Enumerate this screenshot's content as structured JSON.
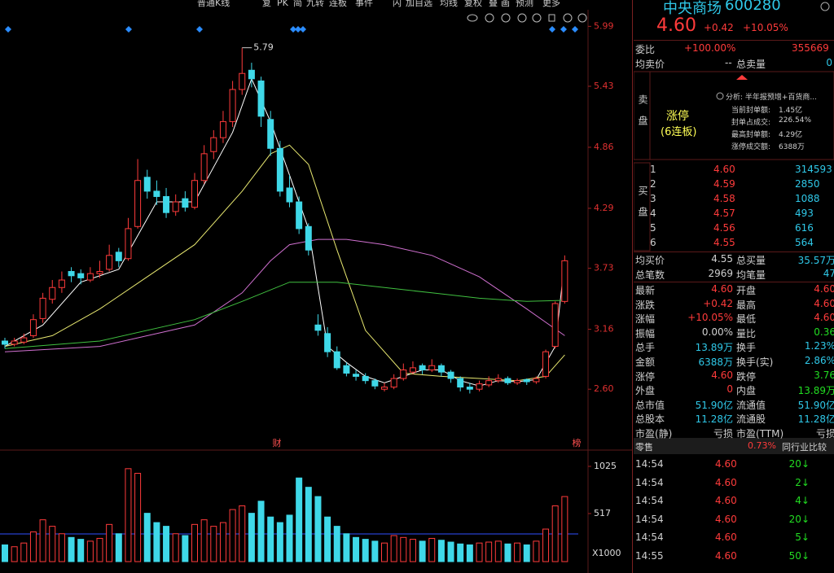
{
  "toolbar": [
    "普通K线",
    "复",
    "PK",
    "简",
    "九转",
    "连板",
    "事件",
    "闪",
    "加自选",
    "均线",
    "复权",
    "叠",
    "画",
    "预测",
    "更多"
  ],
  "kline": {
    "ylim": [
      2.13,
      6.16
    ],
    "yticks": [
      5.99,
      5.43,
      4.86,
      4.29,
      3.73,
      3.16,
      {
        "value": 2.6,
        "label": "2.60"
      }
    ],
    "high_label": "5.79",
    "markers": [
      "财",
      "榜"
    ],
    "up_color": "#ff3b3b",
    "down_color": "#3fd8e8",
    "candles": [
      [
        3.05,
        3.08,
        2.98,
        3.02
      ],
      [
        3.02,
        3.08,
        3.0,
        3.05
      ],
      [
        3.04,
        3.12,
        3.02,
        3.08
      ],
      [
        3.1,
        3.3,
        3.08,
        3.25
      ],
      [
        3.26,
        3.5,
        3.22,
        3.45
      ],
      [
        3.44,
        3.62,
        3.4,
        3.55
      ],
      [
        3.55,
        3.7,
        3.5,
        3.62
      ],
      [
        3.7,
        3.74,
        3.6,
        3.66
      ],
      [
        3.68,
        3.72,
        3.58,
        3.64
      ],
      [
        3.62,
        3.74,
        3.6,
        3.68
      ],
      [
        3.68,
        3.8,
        3.64,
        3.7
      ],
      [
        3.72,
        3.95,
        3.7,
        3.85
      ],
      [
        3.88,
        3.92,
        3.74,
        3.8
      ],
      [
        3.82,
        4.2,
        3.8,
        4.1
      ],
      [
        4.12,
        4.75,
        4.1,
        4.55
      ],
      [
        4.58,
        4.65,
        4.38,
        4.45
      ],
      [
        4.45,
        4.55,
        4.32,
        4.4
      ],
      [
        4.4,
        4.48,
        4.2,
        4.25
      ],
      [
        4.26,
        4.42,
        4.22,
        4.35
      ],
      [
        4.38,
        4.45,
        4.26,
        4.3
      ],
      [
        4.3,
        4.62,
        4.28,
        4.55
      ],
      [
        4.55,
        4.88,
        4.52,
        4.8
      ],
      [
        4.82,
        5.02,
        4.75,
        4.95
      ],
      [
        4.95,
        5.2,
        4.9,
        5.1
      ],
      [
        5.1,
        5.48,
        5.05,
        5.4
      ],
      [
        5.4,
        5.79,
        5.35,
        5.55
      ],
      [
        5.58,
        5.65,
        5.42,
        5.5
      ],
      [
        5.48,
        5.52,
        5.05,
        5.15
      ],
      [
        5.12,
        5.2,
        4.78,
        4.85
      ],
      [
        4.85,
        4.92,
        4.4,
        4.45
      ],
      [
        4.48,
        4.6,
        4.3,
        4.35
      ],
      [
        4.35,
        4.4,
        4.05,
        4.1
      ],
      [
        4.12,
        4.15,
        3.85,
        3.9
      ],
      [
        3.2,
        3.3,
        3.1,
        3.15
      ],
      [
        3.12,
        3.18,
        2.9,
        2.95
      ],
      [
        2.95,
        3.0,
        2.78,
        2.8
      ],
      [
        2.82,
        2.85,
        2.72,
        2.75
      ],
      [
        2.74,
        2.78,
        2.68,
        2.72
      ],
      [
        2.72,
        2.75,
        2.65,
        2.68
      ],
      [
        2.68,
        2.7,
        2.6,
        2.63
      ],
      [
        2.6,
        2.66,
        2.58,
        2.62
      ],
      [
        2.62,
        2.74,
        2.6,
        2.7
      ],
      [
        2.7,
        2.84,
        2.68,
        2.78
      ],
      [
        2.76,
        2.86,
        2.74,
        2.8
      ],
      [
        2.82,
        2.84,
        2.74,
        2.78
      ],
      [
        2.78,
        2.88,
        2.76,
        2.82
      ],
      [
        2.82,
        2.84,
        2.72,
        2.76
      ],
      [
        2.76,
        2.78,
        2.66,
        2.7
      ],
      [
        2.7,
        2.72,
        2.58,
        2.62
      ],
      [
        2.62,
        2.66,
        2.56,
        2.6
      ],
      [
        2.6,
        2.68,
        2.58,
        2.65
      ],
      [
        2.64,
        2.72,
        2.62,
        2.68
      ],
      [
        2.68,
        2.74,
        2.66,
        2.7
      ],
      [
        2.7,
        2.72,
        2.64,
        2.66
      ],
      [
        2.66,
        2.7,
        2.64,
        2.68
      ],
      [
        2.69,
        2.7,
        2.64,
        2.67
      ],
      [
        2.67,
        2.72,
        2.65,
        2.7
      ],
      [
        2.72,
        2.97,
        2.7,
        2.95
      ],
      [
        3.0,
        3.42,
        2.98,
        3.4
      ],
      [
        3.42,
        3.85,
        3.4,
        3.8
      ]
    ],
    "averages": [
      {
        "color": "#ffffff",
        "x": [
          0,
          4,
          8,
          12,
          16,
          20,
          24,
          26,
          28,
          30,
          32,
          34,
          36,
          38,
          40,
          42,
          44,
          46,
          48,
          50,
          52,
          54,
          56,
          58,
          59
        ],
        "values": [
          3.0,
          3.2,
          3.6,
          3.72,
          4.35,
          4.35,
          5.0,
          5.5,
          5.1,
          4.6,
          4.1,
          3.0,
          2.85,
          2.72,
          2.66,
          2.72,
          2.78,
          2.78,
          2.68,
          2.63,
          2.68,
          2.67,
          2.69,
          3.0,
          3.8
        ]
      },
      {
        "color": "#e8e870",
        "x": [
          0,
          5,
          10,
          15,
          20,
          25,
          28,
          30,
          32,
          35,
          38,
          42,
          46,
          50,
          54,
          57,
          59
        ],
        "values": [
          3.0,
          3.1,
          3.35,
          3.65,
          3.95,
          4.45,
          4.8,
          4.88,
          4.7,
          3.9,
          3.15,
          2.75,
          2.72,
          2.7,
          2.68,
          2.72,
          2.92
        ]
      },
      {
        "color": "#d070d0",
        "x": [
          0,
          10,
          20,
          25,
          28,
          30,
          33,
          36,
          40,
          45,
          50,
          55,
          59
        ],
        "values": [
          2.95,
          3.0,
          3.2,
          3.5,
          3.8,
          3.95,
          4.0,
          4.0,
          3.95,
          3.85,
          3.65,
          3.35,
          3.1
        ]
      },
      {
        "color": "#40c040",
        "x": [
          0,
          10,
          20,
          25,
          30,
          35,
          40,
          45,
          50,
          55,
          59
        ],
        "values": [
          2.98,
          3.05,
          3.25,
          3.42,
          3.6,
          3.6,
          3.55,
          3.5,
          3.45,
          3.42,
          3.43
        ]
      }
    ]
  },
  "volume": {
    "vlim": [
      0,
      1165
    ],
    "vticks": [
      1025,
      517
    ],
    "unit": "X1000",
    "values": [
      180,
      160,
      200,
      320,
      450,
      380,
      300,
      260,
      240,
      220,
      250,
      400,
      300,
      1000,
      950,
      520,
      420,
      380,
      300,
      280,
      400,
      450,
      380,
      420,
      560,
      600,
      520,
      650,
      480,
      420,
      500,
      900,
      800,
      700,
      480,
      380,
      300,
      260,
      240,
      220,
      200,
      280,
      260,
      240,
      220,
      250,
      230,
      210,
      190,
      180,
      200,
      210,
      220,
      190,
      200,
      180,
      220,
      350,
      600,
      700
    ]
  },
  "quote": {
    "name": "中央商场",
    "code": "600280",
    "price": "4.60",
    "change": "+0.42",
    "pct": "+10.05%"
  },
  "order_ratio": {
    "label": "委比",
    "pct": "+100.00%",
    "value": "355669"
  },
  "ask_summary": [
    "均卖价",
    "--",
    "总卖量",
    "0"
  ],
  "ask_box": {
    "label": "卖盘",
    "status": "涨停",
    "streak": "(6连板)",
    "analysis": "分析: 半年报预增+百货商...",
    "items": [
      [
        "当前封单额:",
        "1.45亿"
      ],
      [
        "封单占成交:",
        "226.54%"
      ],
      [
        "最高封单额:",
        "4.29亿"
      ],
      [
        "涨停成交额:",
        "6388万"
      ]
    ]
  },
  "bid_label": "买盘",
  "bids": [
    [
      "1",
      "4.60",
      "314593"
    ],
    [
      "2",
      "4.59",
      "2850"
    ],
    [
      "3",
      "4.58",
      "1088"
    ],
    [
      "4",
      "4.57",
      "493"
    ],
    [
      "5",
      "4.56",
      "616"
    ],
    [
      "6",
      "4.55",
      "564"
    ]
  ],
  "bid_summary": [
    [
      "均买价",
      "4.55",
      "总买量",
      "35.57万"
    ],
    [
      "总笔数",
      "2969",
      "均笔量",
      "47"
    ]
  ],
  "stats": [
    [
      "最新",
      "4.60",
      "开盘",
      "4.60"
    ],
    [
      "涨跌",
      "+0.42",
      "最高",
      "4.60"
    ],
    [
      "涨幅",
      "+10.05%",
      "最低",
      "4.60"
    ],
    [
      "振幅",
      "0.00%",
      "量比",
      "0.36"
    ],
    [
      "总手",
      "13.89万",
      "换手",
      "1.23%"
    ],
    [
      "金额",
      "6388万",
      "换手(实)",
      "2.86%"
    ],
    [
      "涨停",
      "4.60",
      "跌停",
      "3.76"
    ],
    [
      "外盘",
      "0",
      "内盘",
      "13.89万"
    ],
    [
      "总市值",
      "51.90亿",
      "流通值",
      "51.90亿"
    ],
    [
      "总股本",
      "11.28亿",
      "流通股",
      "11.28亿"
    ],
    [
      "市盈(静)",
      "亏损",
      "市盈(TTM)",
      "亏损"
    ]
  ],
  "trades_header": [
    "零售",
    "0.73%",
    "同行业比较"
  ],
  "trades": [
    [
      "14:54",
      "4.60",
      "20↓"
    ],
    [
      "14:54",
      "4.60",
      "2↓"
    ],
    [
      "14:54",
      "4.60",
      "4↓"
    ],
    [
      "14:54",
      "4.60",
      "20↓"
    ],
    [
      "14:54",
      "4.60",
      "5↓"
    ],
    [
      "14:55",
      "4.60",
      "50↓"
    ]
  ]
}
